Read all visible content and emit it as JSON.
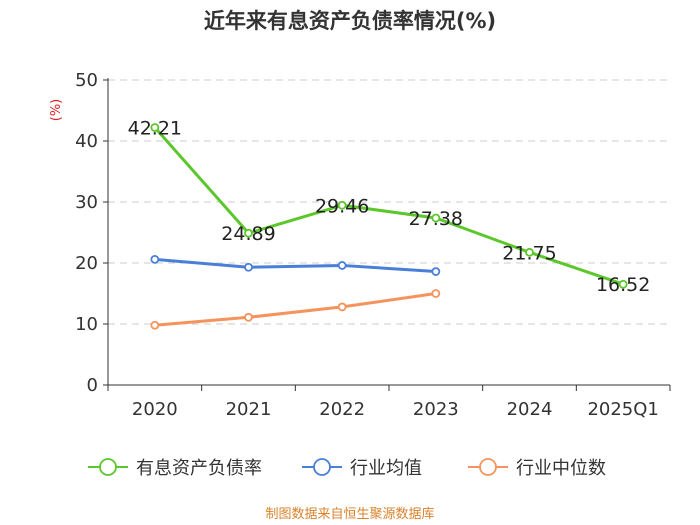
{
  "chart_data": {
    "type": "line",
    "title": "近年来有息资产负债率情况(%)",
    "ylabel": "(%)",
    "categories": [
      "2020",
      "2021",
      "2022",
      "2023",
      "2024",
      "2025Q1"
    ],
    "ylim": [
      0,
      50
    ],
    "yticks": [
      0,
      10,
      20,
      30,
      40,
      50
    ],
    "grid": true,
    "legend_position": "bottom",
    "series": [
      {
        "name": "有息资产负债率",
        "color": "#5cc72c",
        "values": [
          42.21,
          24.89,
          29.46,
          27.38,
          21.75,
          16.52
        ],
        "labels": [
          "42.21",
          "24.89",
          "29.46",
          "27.38",
          "21.75",
          "16.52"
        ]
      },
      {
        "name": "行业均值",
        "color": "#4a7fd8",
        "values": [
          20.6,
          19.3,
          19.6,
          18.6,
          null,
          null
        ]
      },
      {
        "name": "行业中位数",
        "color": "#f5935c",
        "values": [
          9.8,
          11.1,
          12.8,
          15.0,
          null,
          null
        ]
      }
    ]
  },
  "source": "制图数据来自恒生聚源数据库"
}
